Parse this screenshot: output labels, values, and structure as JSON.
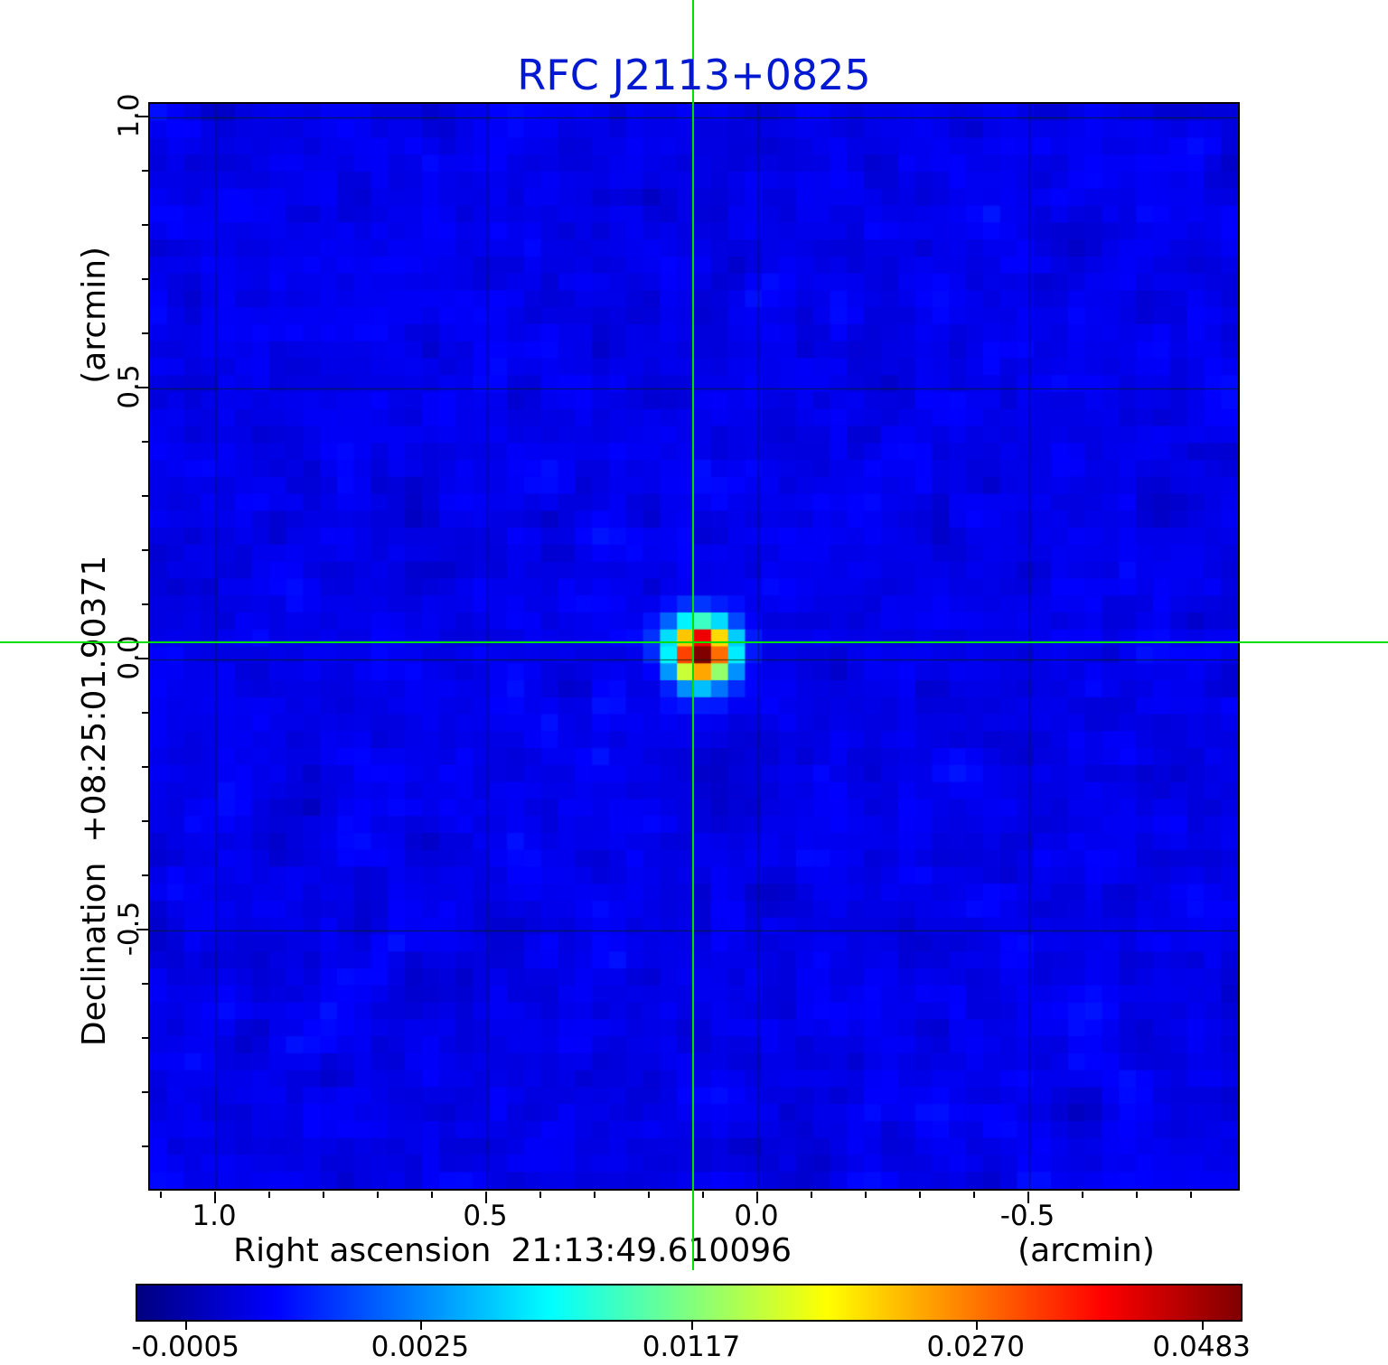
{
  "title": {
    "text": "RFC J2113+0825"
  },
  "colors": {
    "title_blue": "#0018cf",
    "crosshair_green": "#00e000",
    "axis_text": "#000000",
    "grid_line": "#0a2a0a"
  },
  "axes": {
    "x": {
      "name": "Right ascension",
      "value": "21:13:49.610096",
      "unit": "(arcmin)",
      "ticks": [
        "1.0",
        "0.5",
        "0.0",
        "-0.5"
      ]
    },
    "y": {
      "name": "Declination",
      "value": "+08:25:01.90371",
      "unit": "(arcmin)",
      "ticks": [
        "1.0",
        "0.5",
        "0.0",
        "-0.5"
      ]
    }
  },
  "colorbar": {
    "colormap": "jet",
    "ticks": [
      {
        "label": "-0.0005",
        "pos": 0.045
      },
      {
        "label": "0.0025",
        "pos": 0.257
      },
      {
        "label": "0.0117",
        "pos": 0.502
      },
      {
        "label": "0.0270",
        "pos": 0.759
      },
      {
        "label": "0.0483",
        "pos": 0.963
      }
    ]
  },
  "chart_data": {
    "type": "heatmap",
    "title": "RFC J2113+0825",
    "xlabel": "Right ascension 21:13:49.610096 (arcmin)",
    "ylabel": "Declination +08:25:01.90371 (arcmin)",
    "x_ticks_arcmin": [
      1.0,
      0.5,
      0.0,
      -0.5
    ],
    "y_ticks_arcmin": [
      1.0,
      0.5,
      0.0,
      -0.5
    ],
    "x_range_arcmin": [
      1.12,
      -0.89
    ],
    "y_range_arcmin": [
      1.03,
      -0.98
    ],
    "grid": true,
    "colormap": "jet",
    "colorbar_ticks": [
      -0.0005,
      0.0025,
      0.0117,
      0.027,
      0.0483
    ],
    "value_min": -0.0005,
    "value_max": 0.0483,
    "source": {
      "x_arcmin": 0.12,
      "y_arcmin": 0.03,
      "peak_value": 0.0483
    },
    "background_noise_approx": 0.001,
    "crosshair_arcmin": {
      "x": 0.12,
      "y": 0.03
    }
  }
}
